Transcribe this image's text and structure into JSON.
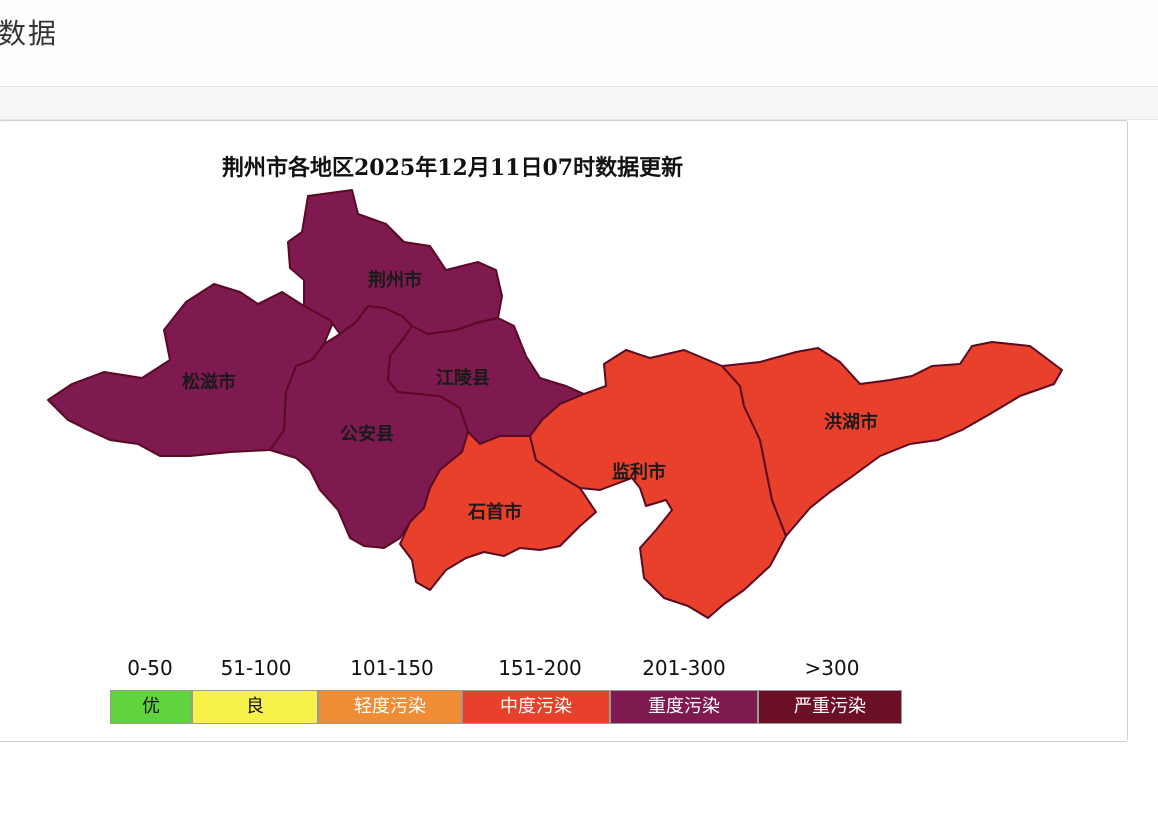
{
  "page": {
    "header_title": "数据"
  },
  "map": {
    "title": "荆州市各地区2025年12月11日07时数据更新",
    "regions": [
      {
        "name": "荆州市",
        "level": "重度污染",
        "color": "#7e1a4f"
      },
      {
        "name": "松滋市",
        "level": "重度污染",
        "color": "#7e1a4f"
      },
      {
        "name": "公安县",
        "level": "重度污染",
        "color": "#7e1a4f"
      },
      {
        "name": "江陵县",
        "level": "重度污染",
        "color": "#7e1a4f"
      },
      {
        "name": "石首市",
        "level": "中度污染",
        "color": "#e8402a"
      },
      {
        "name": "监利市",
        "level": "中度污染",
        "color": "#e8402a"
      },
      {
        "name": "洪湖市",
        "level": "中度污染",
        "color": "#e8402a"
      }
    ]
  },
  "legend": [
    {
      "range": "0-50",
      "label": "优",
      "color": "#5fd43c",
      "text_color": "#111111"
    },
    {
      "range": "51-100",
      "label": "良",
      "color": "#f7f24a",
      "text_color": "#111111"
    },
    {
      "range": "101-150",
      "label": "轻度污染",
      "color": "#f08d34",
      "text_color": "#ffffff"
    },
    {
      "range": "151-200",
      "label": "中度污染",
      "color": "#e8402a",
      "text_color": "#ffffff"
    },
    {
      "range": "201-300",
      "label": "重度污染",
      "color": "#7e1a4f",
      "text_color": "#ffffff"
    },
    {
      "range": ">300",
      "label": "严重污染",
      "color": "#6c1027",
      "text_color": "#ffffff"
    }
  ]
}
